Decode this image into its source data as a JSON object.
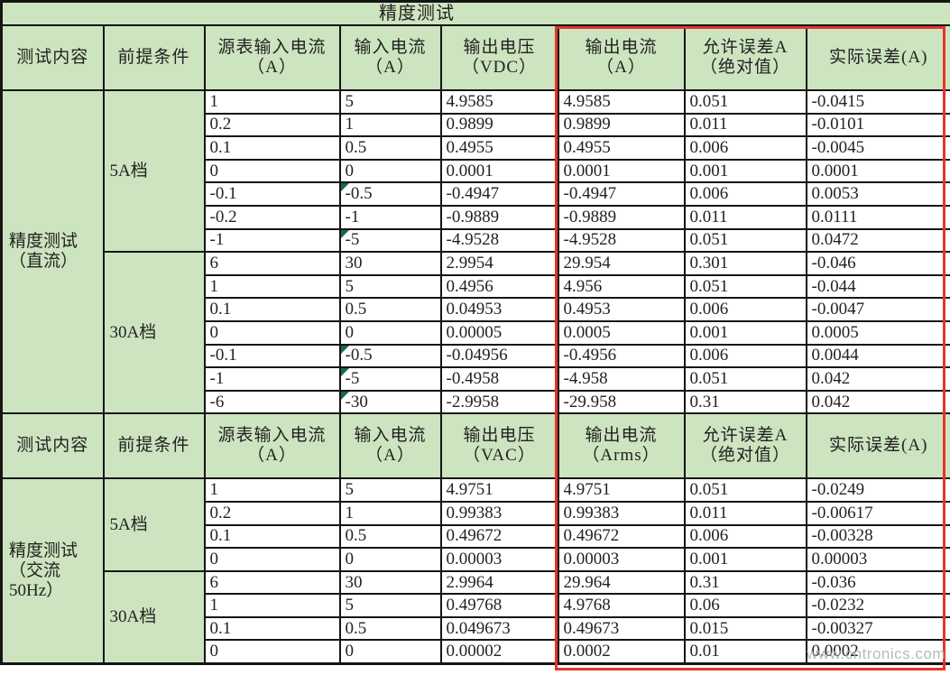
{
  "title": "精度测试",
  "watermark": "www.cntronics.com",
  "colors": {
    "header_bg": "#cce4bf",
    "grid_border": "#151515",
    "highlight_border": "#e8332a",
    "text": "#222222",
    "error_indicator": "#156b4b",
    "watermark_text": "#a9b2a9"
  },
  "sections": [
    {
      "headers": [
        "测试内容",
        "前提条件",
        "源表输入电流\n（A）",
        "输入电流\n（A）",
        "输出电压\n（VDC）",
        "输出电流\n（A）",
        "允许误差A\n（绝对值）",
        "实际误差(A)"
      ],
      "label": "精度测试\n（直流）",
      "groups": [
        {
          "range": "5A档",
          "rows": [
            {
              "cells": [
                "1",
                "5",
                "4.9585",
                "4.9585",
                "0.051",
                "-0.0415"
              ],
              "flag": false
            },
            {
              "cells": [
                "0.2",
                "1",
                "0.9899",
                "0.9899",
                "0.011",
                "-0.0101"
              ],
              "flag": false
            },
            {
              "cells": [
                "0.1",
                "0.5",
                "0.4955",
                "0.4955",
                "0.006",
                "-0.0045"
              ],
              "flag": false
            },
            {
              "cells": [
                "0",
                "0",
                "0.0001",
                "0.0001",
                "0.001",
                "0.0001"
              ],
              "flag": false
            },
            {
              "cells": [
                "-0.1",
                "-0.5",
                "-0.4947",
                "-0.4947",
                "0.006",
                "0.0053"
              ],
              "flag": true
            },
            {
              "cells": [
                "-0.2",
                "-1",
                "-0.9889",
                "-0.9889",
                "0.011",
                "0.0111"
              ],
              "flag": false
            },
            {
              "cells": [
                "-1",
                "-5",
                "-4.9528",
                "-4.9528",
                "0.051",
                "0.0472"
              ],
              "flag": true
            }
          ]
        },
        {
          "range": "30A档",
          "rows": [
            {
              "cells": [
                "6",
                "30",
                "2.9954",
                "29.954",
                "0.301",
                "-0.046"
              ],
              "flag": false
            },
            {
              "cells": [
                "1",
                "5",
                "0.4956",
                "4.956",
                "0.051",
                "-0.044"
              ],
              "flag": false
            },
            {
              "cells": [
                "0.1",
                "0.5",
                "0.04953",
                "0.4953",
                "0.006",
                "-0.0047"
              ],
              "flag": false
            },
            {
              "cells": [
                "0",
                "0",
                "0.00005",
                "0.0005",
                "0.001",
                "0.0005"
              ],
              "flag": false
            },
            {
              "cells": [
                "-0.1",
                "-0.5",
                "-0.04956",
                "-0.4956",
                "0.006",
                "0.0044"
              ],
              "flag": true
            },
            {
              "cells": [
                "-1",
                "-5",
                "-0.4958",
                "-4.958",
                "0.051",
                "0.042"
              ],
              "flag": true
            },
            {
              "cells": [
                "-6",
                "-30",
                "-2.9958",
                "-29.958",
                "0.31",
                "0.042"
              ],
              "flag": true
            }
          ]
        }
      ]
    },
    {
      "headers": [
        "测试内容",
        "前提条件",
        "源表输入电流\n（A）",
        "输入电流\n（A）",
        "输出电压\n（VAC）",
        "输出电流\n（Arms）",
        "允许误差A\n（绝对值）",
        "实际误差(A)"
      ],
      "label": "精度测试\n（交流\n50Hz）",
      "groups": [
        {
          "range": "5A档",
          "rows": [
            {
              "cells": [
                "1",
                "5",
                "4.9751",
                "4.9751",
                "0.051",
                "-0.0249"
              ],
              "flag": false
            },
            {
              "cells": [
                "0.2",
                "1",
                "0.99383",
                "0.99383",
                "0.011",
                "-0.00617"
              ],
              "flag": false
            },
            {
              "cells": [
                "0.1",
                "0.5",
                "0.49672",
                "0.49672",
                "0.006",
                "-0.00328"
              ],
              "flag": false
            },
            {
              "cells": [
                "0",
                "0",
                "0.00003",
                "0.00003",
                "0.001",
                "0.00003"
              ],
              "flag": false
            }
          ]
        },
        {
          "range": "30A档",
          "rows": [
            {
              "cells": [
                "6",
                "30",
                "2.9964",
                "29.964",
                "0.31",
                "-0.036"
              ],
              "flag": false
            },
            {
              "cells": [
                "1",
                "5",
                "0.49768",
                "4.9768",
                "0.06",
                "-0.0232"
              ],
              "flag": false
            },
            {
              "cells": [
                "0.1",
                "0.5",
                "0.049673",
                "0.49673",
                "0.015",
                "-0.00327"
              ],
              "flag": false
            },
            {
              "cells": [
                "0",
                "0",
                "0.00002",
                "0.0002",
                "0.01",
                "0.0002"
              ],
              "flag": false
            }
          ]
        }
      ]
    }
  ]
}
